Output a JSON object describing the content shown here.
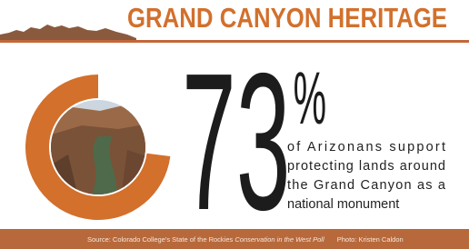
{
  "chart_data": {
    "type": "donut",
    "title": "GRAND CANYON HERITAGE",
    "values": [
      73
    ],
    "value_labels": [
      "73%"
    ],
    "color": "#d2702c",
    "caption": [
      "of Arizonans support",
      "protecting lands around",
      "the Grand Canyon as a",
      "national monument"
    ],
    "source": {
      "prefix": "Source: Colorado College's State of the Rockies",
      "title": "Conservation in the West Poll",
      "photo": "Photo: Kristen Caldon"
    }
  }
}
